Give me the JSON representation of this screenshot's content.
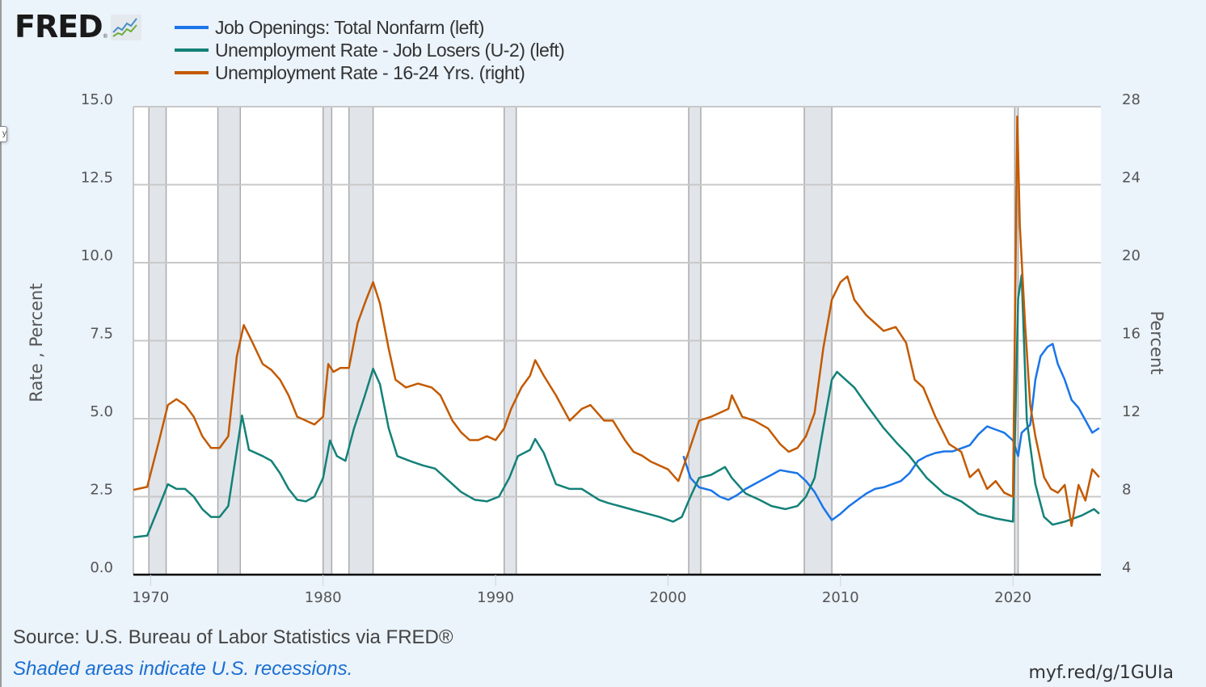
{
  "header": {
    "logo_text": "FRED",
    "logo_mark": "®",
    "logo_icon": "line-chart-icon"
  },
  "tooltip_fragment": "y",
  "footer": {
    "source": "Source: U.S. Bureau of Labor Statistics via FRED®",
    "note": "Shaded areas indicate U.S. recessions.",
    "url": "myf.red/g/1GUIa"
  },
  "colors": {
    "job_openings": "#1a75e8",
    "u2": "#138178",
    "youth": "#c35a00",
    "recession": "#e1e5ea",
    "grid": "#c8c8c8",
    "plot_bg": "#ffffff",
    "page_bg": "#ebf3fb",
    "note": "#1b6fd1"
  },
  "chart_data": {
    "type": "line",
    "title": "",
    "xlabel": "",
    "ylabel_left": "Rate , Percent",
    "ylabel_right": "Percent",
    "xlim": [
      1969.0,
      2025.1
    ],
    "ylim_left": [
      0,
      15
    ],
    "ylim_right": [
      4,
      28
    ],
    "x_ticks": [
      1970,
      1980,
      1990,
      2000,
      2010,
      2020
    ],
    "x_tick_labels": [
      "1970",
      "1980",
      "1990",
      "2000",
      "2010",
      "2020"
    ],
    "y_left_ticks": [
      0,
      2.5,
      5,
      7.5,
      10,
      12.5,
      15
    ],
    "y_left_tick_labels": [
      "0.0",
      "2.5",
      "5.0",
      "7.5",
      "10.0",
      "12.5",
      "15.0"
    ],
    "y_right_ticks": [
      4,
      8,
      12,
      16,
      20,
      24,
      28
    ],
    "y_right_tick_labels": [
      "4",
      "8",
      "12",
      "16",
      "20",
      "24",
      "28"
    ],
    "grid": true,
    "legend_position": "top-left",
    "recessions": [
      [
        1969.9,
        1970.9
      ],
      [
        1973.9,
        1975.2
      ],
      [
        1980.0,
        1980.5
      ],
      [
        1981.5,
        1982.9
      ],
      [
        1990.5,
        1991.2
      ],
      [
        2001.2,
        2001.9
      ],
      [
        2007.9,
        2009.5
      ],
      [
        2020.1,
        2020.3
      ]
    ],
    "series": [
      {
        "name": "Job Openings: Total Nonfarm (left)",
        "axis": "left",
        "color_key": "job_openings",
        "x": [
          2000.9,
          2001.3,
          2001.8,
          2002.5,
          2003.0,
          2003.5,
          2004.0,
          2004.5,
          2005.0,
          2005.5,
          2006.0,
          2006.5,
          2007.0,
          2007.5,
          2008.0,
          2008.5,
          2009.0,
          2009.5,
          2010.0,
          2010.5,
          2011.0,
          2011.5,
          2012.0,
          2012.5,
          2013.0,
          2013.5,
          2014.0,
          2014.5,
          2015.0,
          2015.5,
          2016.0,
          2016.5,
          2017.0,
          2017.5,
          2018.0,
          2018.5,
          2019.0,
          2019.5,
          2020.0,
          2020.3,
          2020.5,
          2020.8,
          2021.0,
          2021.3,
          2021.6,
          2022.0,
          2022.3,
          2022.6,
          2023.0,
          2023.4,
          2023.8,
          2024.2,
          2024.6,
          2025.0
        ],
        "values": [
          3.8,
          3.1,
          2.8,
          2.7,
          2.5,
          2.4,
          2.55,
          2.75,
          2.9,
          3.05,
          3.2,
          3.35,
          3.3,
          3.25,
          3.0,
          2.65,
          2.15,
          1.75,
          1.95,
          2.2,
          2.4,
          2.6,
          2.75,
          2.8,
          2.9,
          3.0,
          3.25,
          3.65,
          3.8,
          3.9,
          3.95,
          3.95,
          4.05,
          4.15,
          4.5,
          4.75,
          4.65,
          4.55,
          4.3,
          3.8,
          4.55,
          4.7,
          4.8,
          6.25,
          7.0,
          7.3,
          7.4,
          6.75,
          6.25,
          5.6,
          5.35,
          4.95,
          4.55,
          4.7
        ]
      },
      {
        "name": "Unemployment Rate - Job Losers (U-2) (left)",
        "axis": "left",
        "color_key": "u2",
        "x": [
          1969.0,
          1969.8,
          1970.5,
          1971.0,
          1971.5,
          1972.0,
          1972.5,
          1973.0,
          1973.5,
          1974.0,
          1974.5,
          1975.0,
          1975.3,
          1975.7,
          1976.5,
          1977.0,
          1977.5,
          1978.0,
          1978.5,
          1979.0,
          1979.5,
          1980.0,
          1980.4,
          1980.8,
          1981.3,
          1981.8,
          1982.4,
          1982.9,
          1983.3,
          1983.8,
          1984.3,
          1985.0,
          1985.8,
          1986.5,
          1987.3,
          1988.0,
          1988.8,
          1989.5,
          1990.2,
          1990.8,
          1991.3,
          1992.0,
          1992.3,
          1992.8,
          1993.5,
          1994.3,
          1995.0,
          1996.0,
          1996.5,
          1997.5,
          1998.5,
          1999.5,
          2000.3,
          2000.8,
          2001.3,
          2001.8,
          2002.5,
          2003.3,
          2003.7,
          2004.5,
          2005.3,
          2006.0,
          2006.8,
          2007.5,
          2008.0,
          2008.5,
          2009.0,
          2009.5,
          2009.8,
          2010.3,
          2010.8,
          2011.5,
          2012.5,
          2013.3,
          2014.0,
          2015.0,
          2016.0,
          2017.0,
          2018.0,
          2019.0,
          2020.0,
          2020.3,
          2020.5,
          2020.8,
          2021.3,
          2021.8,
          2022.3,
          2023.0,
          2024.0,
          2024.7,
          2025.0
        ],
        "values": [
          1.2,
          1.25,
          2.2,
          2.9,
          2.75,
          2.75,
          2.5,
          2.1,
          1.85,
          1.85,
          2.2,
          4.0,
          5.1,
          4.0,
          3.8,
          3.65,
          3.25,
          2.75,
          2.4,
          2.35,
          2.5,
          3.1,
          4.3,
          3.8,
          3.65,
          4.7,
          5.7,
          6.6,
          6.1,
          4.7,
          3.8,
          3.65,
          3.5,
          3.4,
          3.0,
          2.65,
          2.4,
          2.35,
          2.5,
          3.1,
          3.8,
          4.0,
          4.35,
          3.9,
          2.9,
          2.75,
          2.75,
          2.4,
          2.3,
          2.15,
          2.0,
          1.85,
          1.7,
          1.85,
          2.5,
          3.1,
          3.2,
          3.45,
          3.1,
          2.6,
          2.4,
          2.2,
          2.1,
          2.2,
          2.5,
          3.1,
          4.7,
          6.25,
          6.5,
          6.25,
          6.0,
          5.45,
          4.7,
          4.2,
          3.8,
          3.1,
          2.6,
          2.35,
          1.95,
          1.8,
          1.7,
          8.85,
          9.6,
          4.95,
          2.9,
          1.85,
          1.6,
          1.7,
          1.9,
          2.1,
          1.95
        ]
      },
      {
        "name": "Unemployment Rate - 16-24 Yrs. (right)",
        "axis": "right",
        "color_key": "youth",
        "x": [
          1969.0,
          1969.8,
          1970.5,
          1971.0,
          1971.5,
          1972.0,
          1972.5,
          1973.0,
          1973.5,
          1974.0,
          1974.5,
          1975.0,
          1975.4,
          1975.8,
          1976.5,
          1977.0,
          1977.5,
          1978.0,
          1978.5,
          1979.0,
          1979.5,
          1980.0,
          1980.3,
          1980.6,
          1981.0,
          1981.5,
          1982.0,
          1982.5,
          1982.9,
          1983.3,
          1983.8,
          1984.2,
          1984.8,
          1985.5,
          1986.3,
          1986.8,
          1987.5,
          1988.0,
          1988.5,
          1989.0,
          1989.5,
          1990.0,
          1990.5,
          1990.9,
          1991.5,
          1992.0,
          1992.3,
          1992.8,
          1993.5,
          1994.3,
          1995.0,
          1995.5,
          1996.3,
          1996.8,
          1997.5,
          1998.0,
          1998.5,
          1999.0,
          2000.0,
          2000.6,
          2001.2,
          2001.8,
          2002.5,
          2003.5,
          2003.7,
          2004.3,
          2005.0,
          2005.8,
          2006.5,
          2007.0,
          2007.5,
          2008.0,
          2008.5,
          2009.0,
          2009.5,
          2010.0,
          2010.4,
          2010.8,
          2011.5,
          2012.5,
          2013.2,
          2013.8,
          2014.3,
          2014.8,
          2015.5,
          2016.3,
          2017.0,
          2017.5,
          2018.0,
          2018.5,
          2019.0,
          2019.5,
          2020.0,
          2020.25,
          2020.4,
          2020.7,
          2021.0,
          2021.3,
          2021.8,
          2022.2,
          2022.6,
          2023.0,
          2023.4,
          2023.8,
          2024.2,
          2024.6,
          2025.0
        ],
        "values": [
          8.35,
          8.5,
          10.9,
          12.7,
          13.0,
          12.7,
          12.1,
          11.1,
          10.5,
          10.5,
          11.1,
          15.2,
          16.8,
          16.1,
          14.8,
          14.5,
          14.0,
          13.2,
          12.1,
          11.9,
          11.7,
          12.1,
          14.8,
          14.4,
          14.6,
          14.6,
          16.9,
          18.1,
          19.0,
          17.9,
          15.6,
          14.0,
          13.6,
          13.8,
          13.6,
          13.2,
          11.9,
          11.3,
          10.9,
          10.9,
          11.1,
          10.9,
          11.5,
          12.5,
          13.6,
          14.2,
          15.0,
          14.2,
          13.2,
          11.9,
          12.5,
          12.7,
          11.9,
          11.9,
          10.9,
          10.3,
          10.1,
          9.8,
          9.4,
          8.8,
          10.3,
          11.9,
          12.1,
          12.5,
          13.2,
          12.1,
          11.9,
          11.5,
          10.7,
          10.3,
          10.5,
          11.1,
          12.3,
          15.6,
          18.1,
          19.0,
          19.3,
          18.1,
          17.3,
          16.5,
          16.7,
          15.9,
          14.0,
          13.6,
          12.1,
          10.7,
          10.3,
          9.0,
          9.4,
          8.4,
          8.8,
          8.2,
          8.0,
          27.5,
          21.9,
          16.9,
          12.7,
          11.1,
          9.0,
          8.4,
          8.2,
          8.6,
          6.5,
          8.6,
          7.8,
          9.4,
          9.0
        ]
      }
    ]
  }
}
